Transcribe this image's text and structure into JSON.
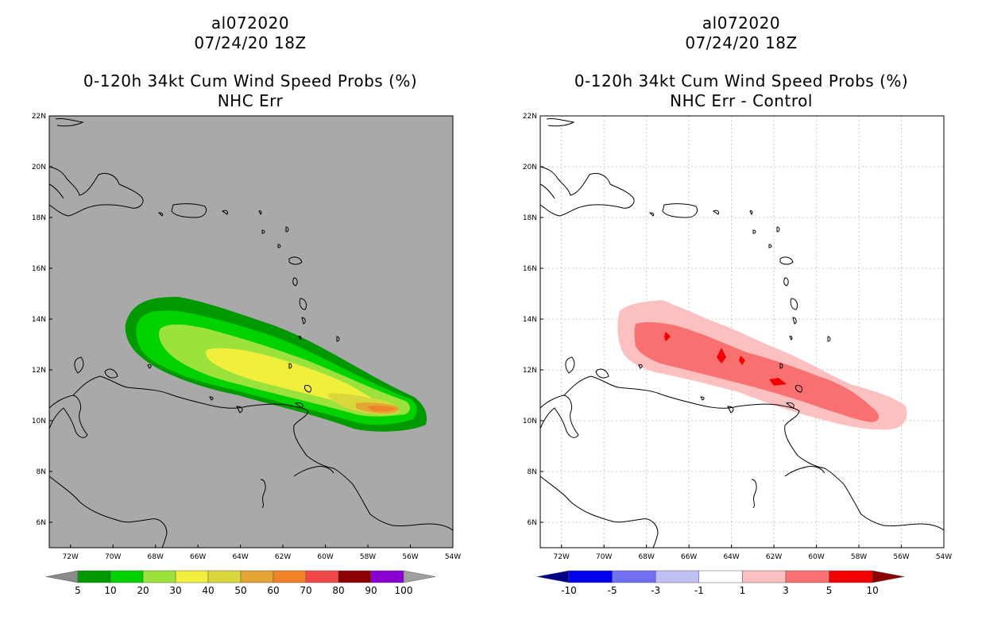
{
  "left_panel": {
    "storm_id": "al072020",
    "datetime": "07/24/20 18Z",
    "product": "0-120h 34kt Cum Wind Speed Probs (%)",
    "subtitle": "NHC Err",
    "background_color": "#a9a9a9",
    "colorbar": {
      "labels": [
        "5",
        "10",
        "20",
        "30",
        "40",
        "50",
        "60",
        "70",
        "80",
        "90",
        "100"
      ],
      "colors": [
        "#8a8a8a",
        "#009a00",
        "#00d200",
        "#9be33c",
        "#f0f03c",
        "#d8d83c",
        "#e4a534",
        "#f08228",
        "#ef4646",
        "#8b0000",
        "#8a00d2",
        "#a0a0a0"
      ]
    }
  },
  "right_panel": {
    "storm_id": "al072020",
    "datetime": "07/24/20 18Z",
    "product": "0-120h 34kt Cum Wind Speed Probs (%)",
    "subtitle": "NHC Err - Control",
    "background_color": "#ffffff",
    "colorbar": {
      "labels": [
        "-10",
        "-5",
        "-3",
        "-1",
        "1",
        "3",
        "5",
        "10"
      ],
      "colors": [
        "#00008b",
        "#0000f0",
        "#7070f0",
        "#c0c0f5",
        "#ffffff",
        "#fcc0c0",
        "#f87070",
        "#f50000",
        "#8b0000"
      ]
    }
  },
  "map": {
    "lat_labels": [
      "22N",
      "20N",
      "18N",
      "16N",
      "14N",
      "12N",
      "10N",
      "8N",
      "6N"
    ],
    "lon_labels": [
      "72W",
      "70W",
      "68W",
      "66W",
      "64W",
      "62W",
      "60W",
      "58W",
      "56W",
      "54W"
    ]
  }
}
